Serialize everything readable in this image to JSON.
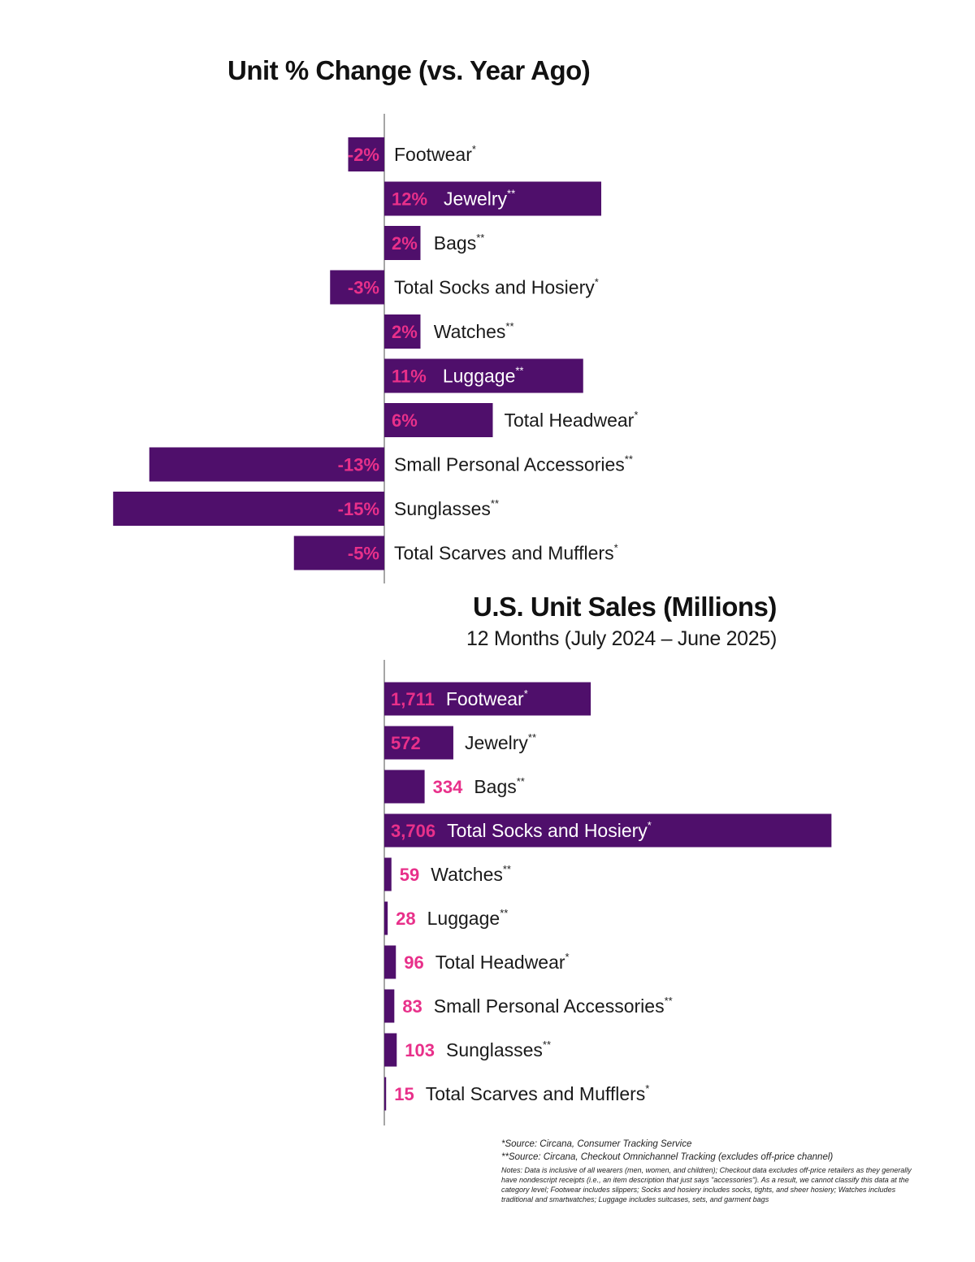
{
  "colors": {
    "bar": "#4f0f6b",
    "value_label": "#e8308a",
    "text": "#1a1a1a"
  },
  "chart_data": [
    {
      "type": "bar",
      "orientation": "horizontal",
      "title": "Unit % Change (vs. Year Ago)",
      "categories": [
        "Footwear",
        "Jewelry",
        "Bags",
        "Total Socks and Hosiery",
        "Watches",
        "Luggage",
        "Total Headwear",
        "Small Personal Accessories",
        "Sunglasses",
        "Total Scarves and Mufflers"
      ],
      "markers": [
        "*",
        "**",
        "**",
        "*",
        "**",
        "**",
        "*",
        "**",
        "**",
        "*"
      ],
      "values": [
        -2,
        12,
        2,
        -3,
        2,
        11,
        6,
        -13,
        -15,
        -5
      ],
      "value_labels": [
        "-2%",
        "12%",
        "2%",
        "-3%",
        "2%",
        "11%",
        "6%",
        "-13%",
        "-15%",
        "-5%"
      ],
      "unit": "%"
    },
    {
      "type": "bar",
      "orientation": "horizontal",
      "title": "U.S. Unit Sales (Millions)",
      "subtitle": "12 Months (July 2024 – June 2025)",
      "categories": [
        "Footwear",
        "Jewelry",
        "Bags",
        "Total Socks and Hosiery",
        "Watches",
        "Luggage",
        "Total Headwear",
        "Small Personal Accessories",
        "Sunglasses",
        "Total Scarves and Mufflers"
      ],
      "markers": [
        "*",
        "**",
        "**",
        "*",
        "**",
        "**",
        "*",
        "**",
        "**",
        "*"
      ],
      "values": [
        1711,
        572,
        334,
        3706,
        59,
        28,
        96,
        83,
        103,
        15
      ],
      "value_labels": [
        "1,711",
        "572",
        "334",
        "3,706",
        "59",
        "28",
        "96",
        "83",
        "103",
        "15"
      ]
    }
  ],
  "footnotes": {
    "source1": "*Source: Circana, Consumer Tracking Service",
    "source2": "**Source: Circana, Checkout Omnichannel Tracking (excludes off-price channel)",
    "notes": "Notes: Data is inclusive of all wearers (men, women, and children); Checkout data excludes off-price retailers as they generally have nondescript receipts (i.e., an item description that just says \"accessories\"). As a result, we cannot classify this data at the category level; Footwear includes slippers; Socks and hosiery includes socks, tights, and sheer hosiery; Watches includes traditional and smartwatches; Luggage includes suitcases, sets, and garment bags"
  }
}
